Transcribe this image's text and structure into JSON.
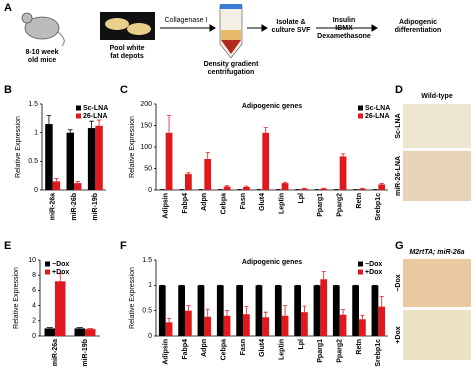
{
  "panels": [
    "A",
    "B",
    "C",
    "D",
    "E",
    "F",
    "G"
  ],
  "diagram": {
    "mice": [
      "8-10 week",
      "old mice"
    ],
    "depots": [
      "Pool white",
      "fat depots"
    ],
    "enzyme": "Collagenase I",
    "centrifuge": [
      "Density gradient",
      "centrifugation"
    ],
    "svf": [
      "Isolate &",
      "culture SVF"
    ],
    "inducers": [
      "Insulin",
      "IBMX",
      "Dexamethasone"
    ],
    "result": [
      "Adipogenic",
      "differentiation"
    ]
  },
  "images": [
    {
      "title": "Wild-type",
      "labels": [
        "Sc-LNA",
        "miR-26-LNA"
      ]
    },
    {
      "title": "M2rtTA; miR-26a",
      "labels": [
        "−Dox",
        "+Dox"
      ]
    }
  ],
  "chart_data": [
    {
      "type": "bar",
      "y_label": "Relative Expression",
      "categories": [
        "miR-26a",
        "miR-26b",
        "miR-19b"
      ],
      "series": [
        {
          "name": "Sc-LNA",
          "color": "#000000",
          "values": [
            1.15,
            1.0,
            1.08
          ],
          "errors": [
            0.15,
            0.05,
            0.12
          ]
        },
        {
          "name": "26-LNA",
          "color": "#e0191f",
          "values": [
            0.15,
            0.12,
            1.12
          ],
          "errors": [
            0.05,
            0.03,
            0.1
          ]
        }
      ],
      "ylim": [
        0,
        1.5
      ],
      "yticks": [
        0,
        0.5,
        1,
        1.5
      ],
      "legend": "upper right"
    },
    {
      "type": "bar",
      "title": "Adipogenic genes",
      "y_label": "Relative Expression",
      "categories": [
        "Adipsin",
        "Fabp4",
        "Adpn",
        "Cebpa",
        "Fasn",
        "Glut4",
        "Leptin",
        "Lpl",
        "Pparg1",
        "Pparg2",
        "Retn",
        "Srebp1c"
      ],
      "series": [
        {
          "name": "Sc-LNA",
          "color": "#000000",
          "values": [
            1,
            1,
            1,
            1,
            1,
            1,
            1,
            1,
            1,
            1,
            1,
            1
          ],
          "errors": [
            0.2,
            0.2,
            0.2,
            0.2,
            0.2,
            0.2,
            0.2,
            0.2,
            0.2,
            0.2,
            0.2,
            0.2
          ]
        },
        {
          "name": "26-LNA",
          "color": "#e0191f",
          "values": [
            133,
            37,
            72,
            8,
            7,
            133,
            16,
            3,
            3,
            78,
            3,
            13
          ],
          "errors": [
            40,
            3,
            15,
            2,
            2,
            12,
            2,
            1,
            1,
            6,
            1,
            2
          ]
        }
      ],
      "ylim": [
        0,
        200
      ],
      "yticks": [
        0,
        50,
        100,
        150,
        200
      ],
      "legend": "upper right"
    },
    {
      "type": "bar",
      "y_label": "Relative Expression",
      "categories": [
        "miR-26a",
        "miR-19b"
      ],
      "series": [
        {
          "name": "−Dox",
          "color": "#000000",
          "values": [
            1,
            1
          ],
          "errors": [
            0.1,
            0.1
          ]
        },
        {
          "name": "+Dox",
          "color": "#e0191f",
          "values": [
            7.2,
            0.9
          ],
          "errors": [
            1.0,
            0.1
          ]
        }
      ],
      "ylim": [
        0,
        10
      ],
      "yticks": [
        0,
        2,
        4,
        6,
        8,
        10
      ],
      "legend": "upper left"
    },
    {
      "type": "bar",
      "title": "Adipogenic genes",
      "y_label": "Relative Expression",
      "categories": [
        "Adipsin",
        "Fabp4",
        "Adpn",
        "Cebpa",
        "Fasn",
        "Glut4",
        "Leptin",
        "Lpl",
        "Pparg1",
        "Pparg2",
        "Retn",
        "Srebp1c"
      ],
      "series": [
        {
          "name": "−Dox",
          "color": "#000000",
          "values": [
            1,
            1,
            1,
            1,
            1,
            1,
            1,
            1,
            1,
            1,
            1,
            1
          ],
          "errors": [
            0,
            0,
            0,
            0,
            0,
            0,
            0,
            0,
            0,
            0,
            0,
            0
          ]
        },
        {
          "name": "+Dox",
          "color": "#e0191f",
          "values": [
            0.27,
            0.5,
            0.38,
            0.4,
            0.43,
            0.37,
            0.4,
            0.47,
            1.12,
            0.42,
            0.33,
            0.58
          ],
          "errors": [
            0.08,
            0.1,
            0.15,
            0.1,
            0.15,
            0.1,
            0.2,
            0.12,
            0.15,
            0.1,
            0.08,
            0.2
          ]
        }
      ],
      "ylim": [
        0,
        1.5
      ],
      "yticks": [
        0,
        0.5,
        1,
        1.5
      ],
      "legend": "upper right"
    }
  ]
}
